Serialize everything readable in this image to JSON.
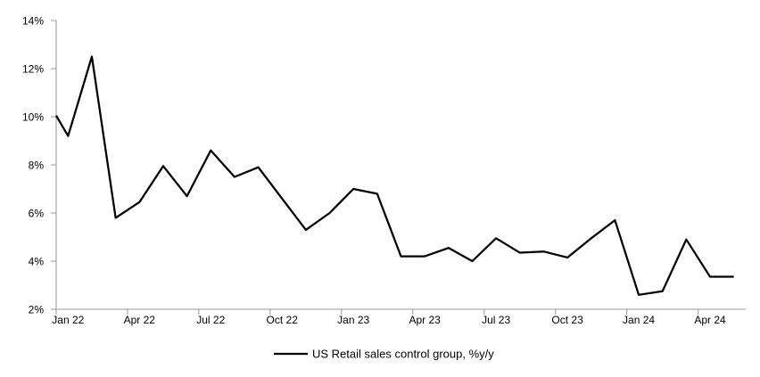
{
  "chart_data": {
    "type": "line",
    "title": "",
    "legend_label": "US Retail sales control group, %y/y",
    "x": [
      "Jan 22",
      "Feb 22",
      "Mar 22",
      "Apr 22",
      "May 22",
      "Jun 22",
      "Jul 22",
      "Aug 22",
      "Sep 22",
      "Oct 22",
      "Nov 22",
      "Dec 22",
      "Jan 23",
      "Feb 23",
      "Mar 23",
      "Apr 23",
      "May 23",
      "Jun 23",
      "Jul 23",
      "Aug 23",
      "Sep 23",
      "Oct 23",
      "Nov 23",
      "Dec 23",
      "Jan 24",
      "Feb 24",
      "Mar 24",
      "Apr 24",
      "May 24"
    ],
    "values": [
      9.2,
      12.5,
      5.8,
      6.45,
      7.95,
      6.7,
      8.6,
      7.5,
      7.9,
      6.6,
      5.3,
      6.0,
      7.0,
      6.8,
      4.2,
      4.2,
      4.55,
      4.0,
      4.95,
      4.35,
      4.4,
      4.15,
      4.95,
      5.7,
      2.6,
      2.75,
      4.9,
      3.35,
      3.35
    ],
    "axis_entry_value_pct": 10.05,
    "ylim": [
      2,
      14
    ],
    "y_tick_values": [
      2,
      4,
      6,
      8,
      10,
      12,
      14
    ],
    "y_tick_labels": [
      "2%",
      "4%",
      "6%",
      "8%",
      "10%",
      "12%",
      "14%"
    ],
    "x_tick_labels": [
      "Jan 22",
      "Apr 22",
      "Jul 22",
      "Oct 22",
      "Jan 23",
      "Apr 23",
      "Jul 23",
      "Oct 23",
      "Jan 24",
      "Apr 24"
    ],
    "x_tick_label_month_indices": [
      0,
      3,
      6,
      9,
      12,
      15,
      18,
      21,
      24,
      27
    ],
    "grid": "off",
    "legend_position": "bottom-center",
    "colors": {
      "line": "#000000",
      "axis": "#999999",
      "text": "#000000",
      "background": "#ffffff"
    }
  }
}
